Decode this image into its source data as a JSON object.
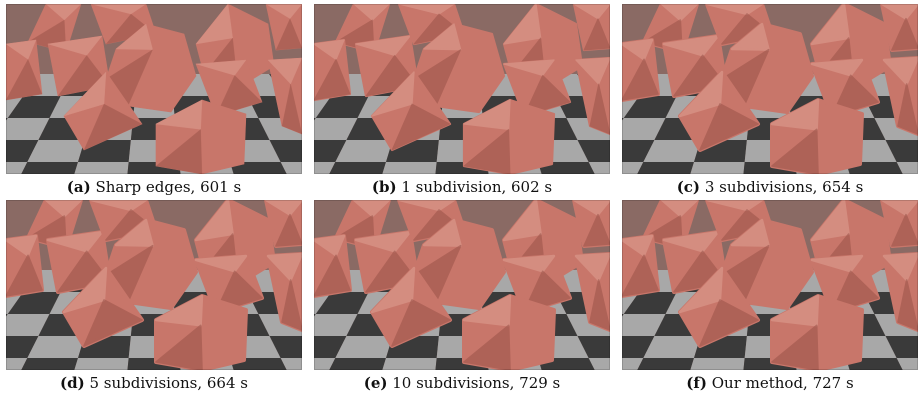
{
  "figure": {
    "panels": [
      {
        "label": "(a)",
        "caption": "Sharp edges, 601 s",
        "style": "sharp"
      },
      {
        "label": "(b)",
        "caption": "1 subdivision, 602 s",
        "style": "faceted"
      },
      {
        "label": "(c)",
        "caption": "3 subdivisions, 654 s",
        "style": "rounded"
      },
      {
        "label": "(d)",
        "caption": "5 subdivisions, 664 s",
        "style": "rounded"
      },
      {
        "label": "(e)",
        "caption": "10 subdivisions, 729 s",
        "style": "rounded"
      },
      {
        "label": "(f)",
        "caption": "Our method, 727 s",
        "style": "rounded"
      }
    ],
    "colors": {
      "shape": "#c8766a",
      "shape_light": "#d99588",
      "shape_dark": "#9a5248",
      "floor_dark": "#3a3a3a",
      "floor_light": "#a8a8a8",
      "background": "#8a6a64"
    }
  }
}
